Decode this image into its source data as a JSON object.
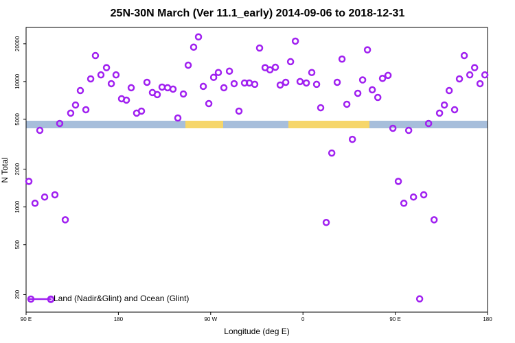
{
  "chart_data": {
    "type": "scatter",
    "title": "25N-30N March (Ver 11.1_early)   2014-09-06 to 2018-12-31",
    "x_label": "Longitude (deg E)",
    "y_label": "N Total",
    "log_y": true,
    "legend": "bottom-left",
    "xlim": [
      90,
      540
    ],
    "xticks": [
      {
        "value": 90,
        "label": "90 E"
      },
      180,
      {
        "value": 270,
        "label": "90 W"
      },
      {
        "value": 360,
        "label": "0"
      },
      {
        "value": 450,
        "label": "90 E"
      },
      {
        "value": 540,
        "label": "180"
      }
    ],
    "ylim": [
      145,
      27000
    ],
    "yticks": [
      200,
      500,
      1000,
      2000,
      5000,
      10000,
      20000
    ],
    "series": [
      {
        "name": "Land (Nadir&Glint) and Ocean (Glint)",
        "color": "#a020f0",
        "x": [
          92.7,
          98.7,
          103.4,
          108.1,
          114.1,
          118.1,
          122.8,
          128.2,
          133.5,
          138.2,
          142.9,
          148.3,
          153.0,
          157.6,
          163.0,
          168.4,
          173.1,
          177.7,
          183.1,
          187.8,
          192.5,
          197.8,
          202.5,
          207.9,
          213.2,
          217.9,
          222.6,
          228.0,
          233.3,
          238.0,
          243.4,
          248.1,
          253.4,
          258.1,
          262.8,
          268.2,
          272.9,
          277.5,
          282.9,
          288.3,
          292.9,
          297.6,
          303.0,
          307.7,
          313.0,
          317.7,
          323.1,
          327.8,
          333.1,
          337.8,
          343.2,
          347.9,
          352.6,
          357.2,
          363.3,
          368.6,
          373.3,
          377.3,
          382.7,
          388.1,
          393.4,
          398.1,
          402.8,
          408.2,
          413.5,
          418.2,
          422.9,
          427.6,
          433.0,
          437.6,
          443.0,
          447.7,
          453.0,
          458.4,
          463.1,
          467.8,
          473.8,
          477.8,
          482.5,
          487.9,
          493.2,
          497.9,
          502.6,
          507.9,
          512.6,
          517.3,
          522.7,
          527.4,
          532.7,
          537.4
        ],
        "values": [
          1600,
          1070,
          4080,
          1200,
          183,
          1250,
          4630,
          790,
          5600,
          6500,
          8470,
          5960,
          10500,
          16100,
          11300,
          12900,
          9620,
          11300,
          7290,
          7110,
          8920,
          5600,
          5810,
          9860,
          8170,
          7870,
          9030,
          8920,
          8700,
          5120,
          7960,
          13500,
          18800,
          22700,
          9150,
          6670,
          10800,
          11800,
          8920,
          12100,
          9620,
          5810,
          9740,
          9740,
          9500,
          18500,
          12900,
          12400,
          13000,
          9380,
          9860,
          14400,
          21000,
          10000,
          9740,
          11800,
          9500,
          6180,
          752,
          2690,
          9860,
          15100,
          6590,
          3460,
          8060,
          10300,
          17900,
          8590,
          7470,
          10600,
          11200,
          4240,
          1600,
          1070,
          4080,
          1200,
          185,
          1250,
          4630,
          790,
          5600,
          6500,
          8470,
          5960,
          10500,
          16100,
          11300,
          12900,
          9620,
          11300
        ]
      }
    ]
  }
}
